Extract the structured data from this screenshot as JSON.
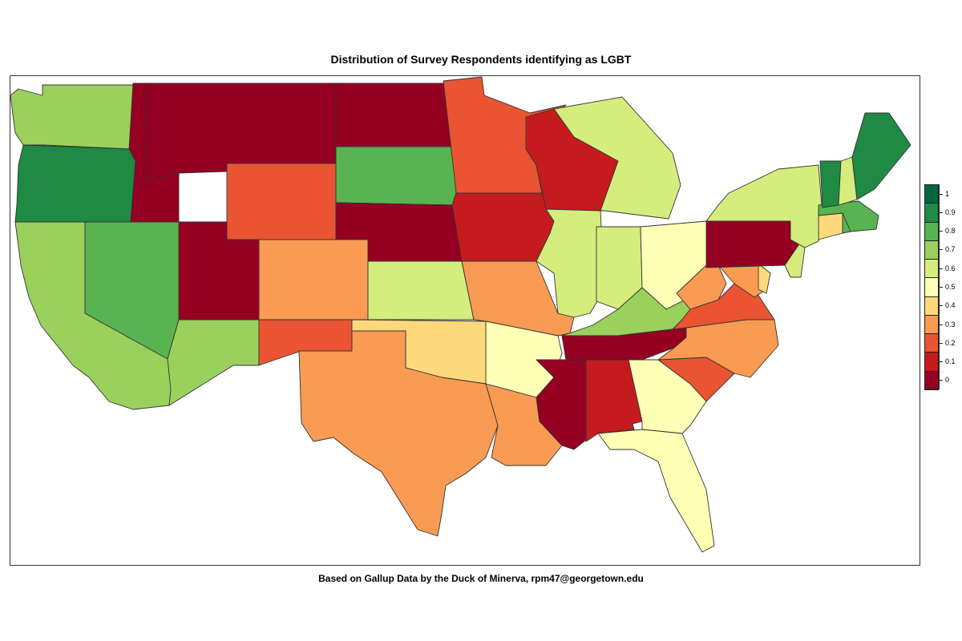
{
  "title": "Distribution of Survey Respondents identifying as LGBT",
  "subtitle": "Based on Gallup Data by the Duck of Minerva, rpm47@georgetown.edu",
  "legend": {
    "labels": [
      "1",
      "0.9",
      "0.8",
      "0.7",
      "0.6",
      "0.5",
      "0.4",
      "0.3",
      "0.2",
      "0.1",
      "0"
    ],
    "colors": [
      "#00683d",
      "#1e8a43",
      "#58b351",
      "#9ad05c",
      "#d4ed7d",
      "#ffffb5",
      "#fdd97c",
      "#f99b52",
      "#ea5432",
      "#c61b1e",
      "#950022"
    ]
  },
  "chart_data": {
    "type": "choropleth",
    "region": "Contiguous United States",
    "scale_min": 0,
    "scale_max": 1,
    "states": {
      "WA": 0.7,
      "OR": 0.9,
      "CA": 0.7,
      "NV": 0.8,
      "ID": 0,
      "MT": 0,
      "WY": 0.2,
      "UT": 0,
      "AZ": 0.7,
      "CO": 0.3,
      "NM": 0.2,
      "ND": 0,
      "SD": 0.8,
      "NE": 0,
      "KS": 0.6,
      "OK": 0.4,
      "TX": 0.3,
      "MN": 0.2,
      "IA": 0.1,
      "MO": 0.3,
      "AR": 0.5,
      "LA": 0.3,
      "WI": 0.1,
      "IL": 0.6,
      "MI": 0.6,
      "IN": 0.6,
      "OH": 0.5,
      "KY": 0.7,
      "TN": 0,
      "MS": 0,
      "AL": 0.1,
      "GA": 0.5,
      "FL": 0.5,
      "SC": 0.2,
      "NC": 0.3,
      "VA": 0.2,
      "WV": 0.3,
      "MD": 0.3,
      "DE": 0.4,
      "NJ": 0.6,
      "PA": 0,
      "NY": 0.6,
      "CT": 0.4,
      "RI": 0.8,
      "MA": 0.8,
      "VT": 0.9,
      "NH": 0.6,
      "ME": 0.9
    }
  }
}
